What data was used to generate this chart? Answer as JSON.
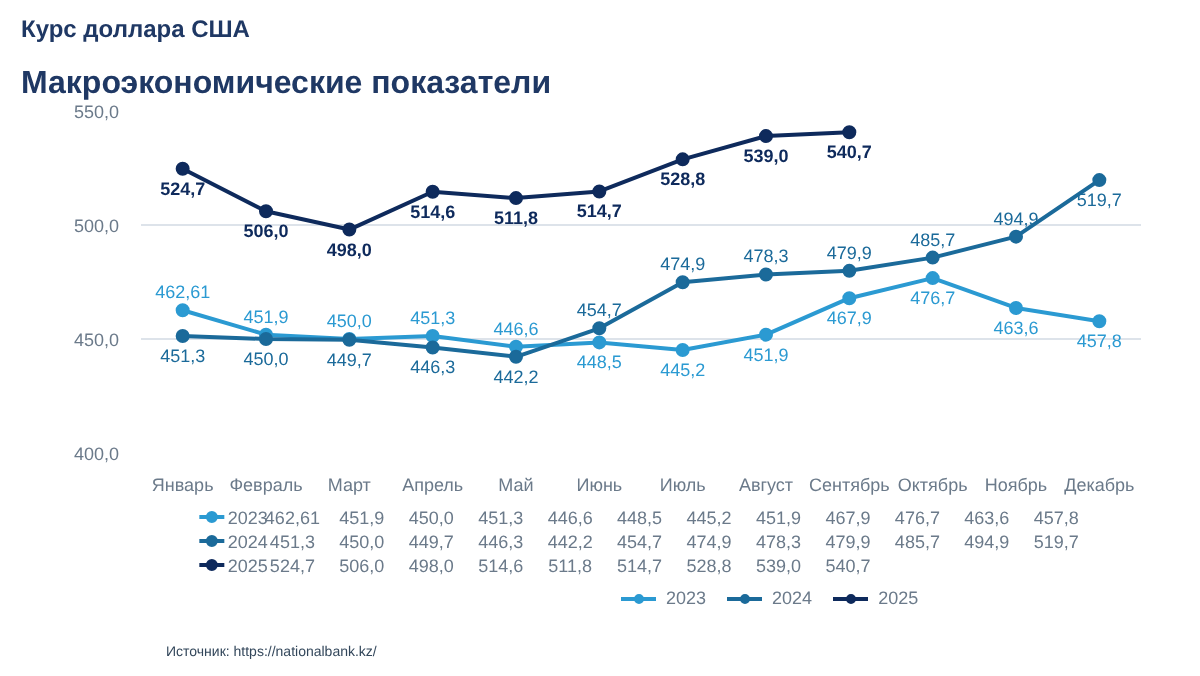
{
  "chart_data": {
    "type": "line",
    "title": "Макроэкономические показатели",
    "subtitle": "Курс доллара США",
    "categories": [
      "Январь",
      "Февраль",
      "Март",
      "Апрель",
      "Май",
      "Июнь",
      "Июль",
      "Август",
      "Сентябрь",
      "Октябрь",
      "Ноябрь",
      "Декабрь"
    ],
    "series": [
      {
        "name": "2023",
        "color": "#2b9ad2",
        "values": [
          462.61,
          451.9,
          450.0,
          451.3,
          446.6,
          448.5,
          445.2,
          451.9,
          467.9,
          476.7,
          463.6,
          457.8
        ],
        "value_labels": [
          "462,61",
          "451,9",
          "450,0",
          "451,3",
          "446,6",
          "448,5",
          "445,2",
          "451,9",
          "467,9",
          "476,7",
          "463,6",
          "457,8"
        ]
      },
      {
        "name": "2024",
        "color": "#1b6a9a",
        "values": [
          451.3,
          450.0,
          449.7,
          446.3,
          442.2,
          454.7,
          474.9,
          478.3,
          479.9,
          485.7,
          494.9,
          519.7
        ],
        "value_labels": [
          "451,3",
          "450,0",
          "449,7",
          "446,3",
          "442,2",
          "454,7",
          "474,9",
          "478,3",
          "479,9",
          "485,7",
          "494,9",
          "519,7"
        ]
      },
      {
        "name": "2025",
        "color": "#0e2a5c",
        "values": [
          524.7,
          506.0,
          498.0,
          514.6,
          511.8,
          514.7,
          528.8,
          539.0,
          540.7,
          null,
          null,
          null
        ],
        "value_labels": [
          "524,7",
          "506,0",
          "498,0",
          "514,6",
          "511,8",
          "514,7",
          "528,8",
          "539,0",
          "540,7",
          null,
          null,
          null
        ]
      }
    ],
    "ylim": [
      400,
      550
    ],
    "yticks": [
      {
        "value": 400,
        "label": "400,0"
      },
      {
        "value": 450,
        "label": "450,0"
      },
      {
        "value": 500,
        "label": "500,0"
      },
      {
        "value": 550,
        "label": "550,0"
      }
    ],
    "grid": "y",
    "legend": "bottom",
    "marker": "circle",
    "line_style": "solid",
    "annotations": [
      "Источник: https://nationalbank.kz/"
    ]
  }
}
